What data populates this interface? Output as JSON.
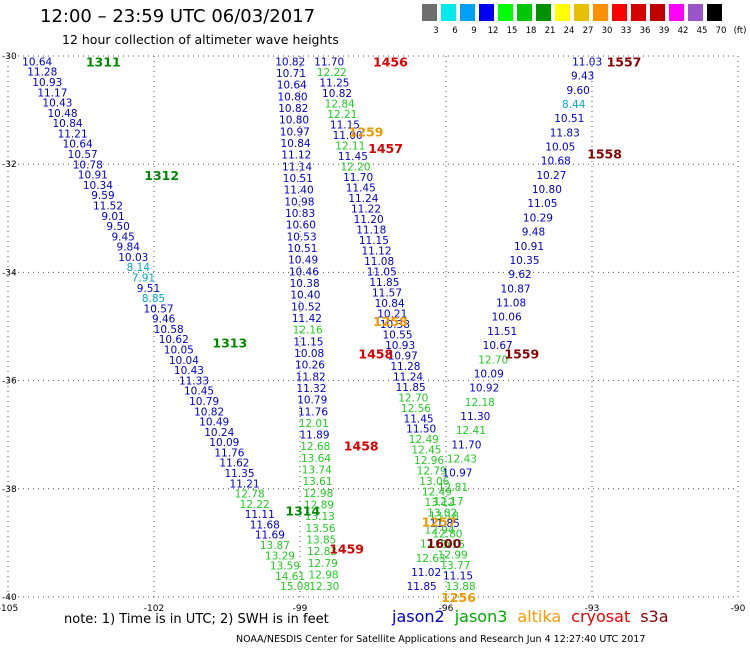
{
  "header": {
    "title": "12:00 – 23:59 UTC 06/03/2017",
    "subtitle": "12 hour collection of altimeter wave heights"
  },
  "legend": {
    "colors": [
      "#6e6e6e",
      "#00ecec",
      "#00a0f6",
      "#0000f6",
      "#00ff00",
      "#00c800",
      "#009000",
      "#ffff00",
      "#e7c000",
      "#ff9000",
      "#ff0000",
      "#d60000",
      "#c00000",
      "#ff00ff",
      "#9955c9",
      "#000000"
    ],
    "labels": [
      "3",
      "6",
      "9",
      "12",
      "15",
      "18",
      "21",
      "24",
      "27",
      "30",
      "33",
      "36",
      "39",
      "42",
      "45",
      "70",
      "(ft)"
    ]
  },
  "footer": {
    "note": "note:  1) Time is in UTC;  2) SWH is in feet",
    "satellites": [
      {
        "name": "jason2",
        "color": "#0000cc"
      },
      {
        "name": "jason3",
        "color": "#00aa00"
      },
      {
        "name": "altika",
        "color": "#ff9900"
      },
      {
        "name": "cryosat",
        "color": "#ee0000"
      },
      {
        "name": "s3a",
        "color": "#8b0000"
      }
    ],
    "credit": "NOAA/NESDIS Center for Satellite Applications and Research      Jun  4 12:27:40 UTC 2017"
  },
  "chart_data": {
    "type": "scatter",
    "xlim": [
      -105,
      -90
    ],
    "ylim": [
      -40,
      -30
    ],
    "x_ticks": [
      "-105",
      "-102",
      "-99",
      "-96",
      "-93",
      "-90"
    ],
    "y_ticks": [
      "-30",
      "-32",
      "-34",
      "-36",
      "-38",
      "-40"
    ],
    "grid": true,
    "colors": {
      "dark_blue": "#0000cc",
      "cyan": "#00aacc",
      "green": "#22cc22",
      "dark_green": "#008800",
      "orange": "#ee9900",
      "red": "#dd0000",
      "dark_red": "#880000"
    },
    "tracks": [
      {
        "satellite": "jason2",
        "start": [
          -104.4,
          -30.1
        ],
        "end": [
          -99.1,
          -39.8
        ],
        "values": [
          "10.64",
          "11.28",
          "10.93",
          "11.17",
          "10.43",
          "10.48",
          "10.84",
          "11.21",
          "10.64",
          "10.57",
          "10.78",
          "10.91",
          "10.34",
          "9.59",
          "11.52",
          "9.01",
          "9.50",
          "9.45",
          "9.84",
          "10.03",
          "8.14",
          "7.91",
          "9.51",
          "8.85",
          "10.57",
          "9.46",
          "10.58",
          "10.62",
          "10.05",
          "10.04",
          "10.43",
          "11.33",
          "10.45",
          "10.79",
          "10.82",
          "10.49",
          "10.24",
          "10.09",
          "11.76",
          "11.62",
          "11.35",
          "11.21",
          "12.78",
          "12.22",
          "11.11",
          "11.68",
          "11.69",
          "13.87",
          "13.29",
          "13.59",
          "14.61",
          "15.08"
        ]
      },
      {
        "satellite": "jason3",
        "start": [
          -99.2,
          -30.1
        ],
        "end": [
          -98.5,
          -39.8
        ],
        "values": [
          "10.82",
          "10.71",
          "10.64",
          "10.80",
          "10.82",
          "10.80",
          "10.97",
          "10.84",
          "11.12",
          "11.14",
          "10.51",
          "11.40",
          "10.98",
          "10.83",
          "10.60",
          "10.53",
          "10.51",
          "10.49",
          "10.46",
          "10.38",
          "10.40",
          "10.52",
          "11.42",
          "12.16",
          "11.15",
          "10.08",
          "10.26",
          "11.82",
          "11.32",
          "10.79",
          "11.76",
          "12.01",
          "11.89",
          "12.68",
          "13.64",
          "13.74",
          "13.61",
          "12.98",
          "12.89",
          "13.13",
          "13.56",
          "13.85",
          "12.83",
          "12.79",
          "12.98",
          "12.30"
        ]
      },
      {
        "satellite": "altika",
        "start": [
          -98.4,
          -30.1
        ],
        "end": [
          -95.7,
          -39.8
        ],
        "values": [
          "11.70",
          "12.22",
          "11.25",
          "10.82",
          "12.84",
          "12.21",
          "11.15",
          "11.00",
          "12.11",
          "11.45",
          "12.20",
          "11.70",
          "11.45",
          "11.24",
          "11.22",
          "11.20",
          "11.18",
          "11.15",
          "11.12",
          "11.08",
          "11.05",
          "11.85",
          "11.57",
          "10.84",
          "10.21",
          "10.38",
          "10.55",
          "10.93",
          "10.97",
          "11.28",
          "11.24",
          "11.85",
          "12.70",
          "12.56",
          "11.45",
          "11.50",
          "12.49",
          "12.45",
          "12.96",
          "12.79",
          "13.06",
          "12.49",
          "13.12",
          "13.02",
          "11.85",
          "12.80",
          "13.15",
          "12.99",
          "13.77",
          "11.15",
          "13.88"
        ]
      },
      {
        "satellite": "s3a",
        "start": [
          -93.1,
          -30.1
        ],
        "end": [
          -96.5,
          -39.8
        ],
        "values": [
          "11.03",
          "9.43",
          "9.60",
          "8.44",
          "10.51",
          "11.83",
          "10.05",
          "10.68",
          "10.27",
          "10.80",
          "11.05",
          "10.29",
          "9.48",
          "10.91",
          "10.35",
          "9.62",
          "10.87",
          "11.08",
          "10.06",
          "11.51",
          "10.67",
          "12.70",
          "10.09",
          "10.92",
          "12.18",
          "11.30",
          "12.41",
          "11.70",
          "12.43",
          "10.97",
          "12.81",
          "12.17",
          "13.18",
          "12.94",
          "12.06",
          "12.63",
          "11.02",
          "11.85"
        ]
      }
    ],
    "orbit_labels": [
      {
        "text": "1311",
        "x": -103.4,
        "y": -30.1,
        "color": "dark_green"
      },
      {
        "text": "1312",
        "x": -102.2,
        "y": -32.2,
        "color": "dark_green"
      },
      {
        "text": "1313",
        "x": -100.8,
        "y": -35.3,
        "color": "dark_green"
      },
      {
        "text": "1314",
        "x": -99.3,
        "y": -38.4,
        "color": "dark_green"
      },
      {
        "text": "1456",
        "x": -97.5,
        "y": -30.1,
        "color": "red"
      },
      {
        "text": "1457",
        "x": -97.6,
        "y": -31.7,
        "color": "red"
      },
      {
        "text": "1458",
        "x": -97.8,
        "y": -35.5,
        "color": "red"
      },
      {
        "text": "1458",
        "x": -98.1,
        "y": -37.2,
        "color": "red"
      },
      {
        "text": "1459",
        "x": -98.4,
        "y": -39.1,
        "color": "red"
      },
      {
        "text": "1259",
        "x": -98.0,
        "y": -31.4,
        "color": "orange"
      },
      {
        "text": "1258",
        "x": -97.5,
        "y": -34.9,
        "color": "orange"
      },
      {
        "text": "1257",
        "x": -96.5,
        "y": -38.6,
        "color": "orange"
      },
      {
        "text": "1256",
        "x": -96.1,
        "y": -40.0,
        "color": "orange"
      },
      {
        "text": "1600",
        "x": -96.4,
        "y": -39.0,
        "color": "dark_red"
      },
      {
        "text": "1557",
        "x": -92.7,
        "y": -30.1,
        "color": "dark_red"
      },
      {
        "text": "1558",
        "x": -93.1,
        "y": -31.8,
        "color": "dark_red"
      },
      {
        "text": "1559",
        "x": -94.8,
        "y": -35.5,
        "color": "dark_red"
      }
    ]
  }
}
